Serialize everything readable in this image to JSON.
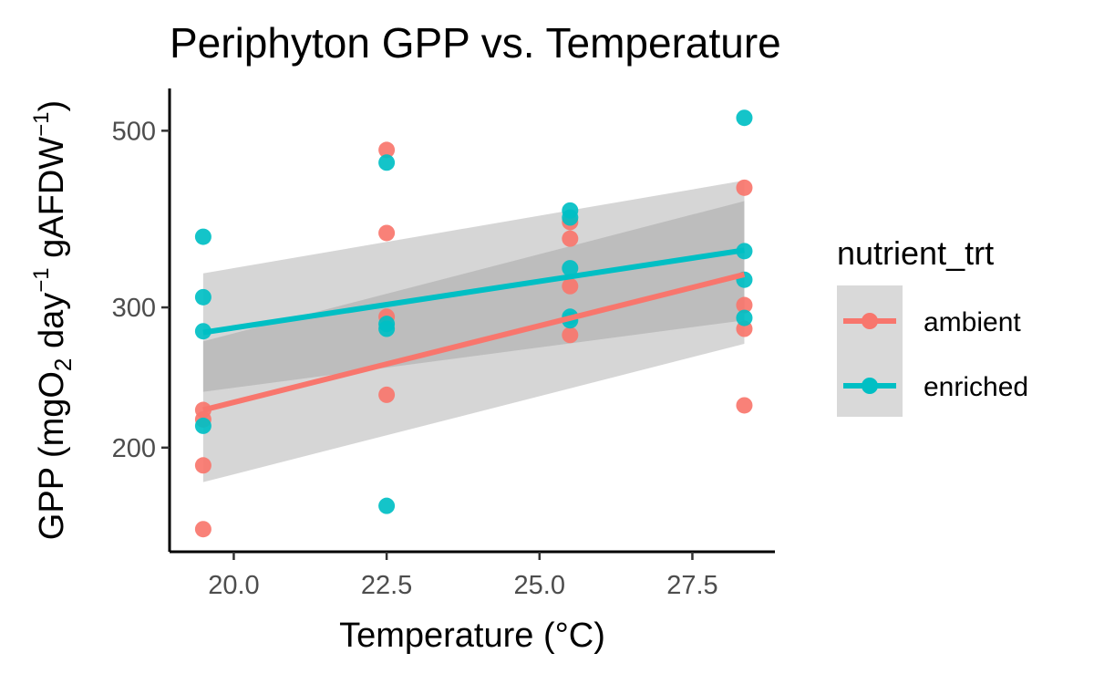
{
  "chart_data": {
    "type": "scatter",
    "title": "Periphyton GPP vs. Temperature",
    "xlabel": "Temperature (°C)",
    "ylabel": {
      "p1": "GPP (mgO",
      "sub": "2",
      "p2": " day",
      "sup1": "−1",
      "p3": " gAFDW",
      "sup2": "−1",
      "p4": ")"
    },
    "y_scale": "log",
    "xlim": [
      18.95,
      28.85
    ],
    "ylim": [
      148,
      565
    ],
    "x_ticks": [
      20.0,
      22.5,
      25.0,
      27.5
    ],
    "x_tick_labels": [
      "20.0",
      "22.5",
      "25.0",
      "27.5"
    ],
    "y_ticks": [
      200,
      300,
      500
    ],
    "y_tick_labels": [
      "200",
      "300",
      "500"
    ],
    "legend": {
      "title": "nutrient_trt",
      "placement": "right"
    },
    "series": [
      {
        "name": "ambient",
        "color": "#F8766D",
        "points": [
          [
            19.5,
            158
          ],
          [
            19.5,
            190
          ],
          [
            19.5,
            217
          ],
          [
            19.5,
            223
          ],
          [
            22.5,
            233
          ],
          [
            22.5,
            292
          ],
          [
            22.5,
            372
          ],
          [
            22.5,
            473
          ],
          [
            25.5,
            277
          ],
          [
            25.5,
            319
          ],
          [
            25.5,
            366
          ],
          [
            25.5,
            384
          ],
          [
            28.35,
            226
          ],
          [
            28.35,
            282
          ],
          [
            28.35,
            302
          ],
          [
            28.35,
            424
          ]
        ],
        "fit": {
          "x": [
            19.5,
            28.35
          ],
          "y": [
            223,
            330
          ]
        },
        "ci": {
          "lower": [
            181,
            270
          ],
          "upper": [
            272,
            408
          ]
        }
      },
      {
        "name": "enriched",
        "color": "#00BFC4",
        "points": [
          [
            19.5,
            213
          ],
          [
            19.5,
            280
          ],
          [
            19.5,
            309
          ],
          [
            19.5,
            368
          ],
          [
            22.5,
            169
          ],
          [
            22.5,
            282
          ],
          [
            22.5,
            286
          ],
          [
            22.5,
            456
          ],
          [
            25.5,
            289
          ],
          [
            25.5,
            292
          ],
          [
            25.5,
            336
          ],
          [
            25.5,
            389
          ],
          [
            25.5,
            397
          ],
          [
            28.35,
            291
          ],
          [
            28.35,
            325
          ],
          [
            28.35,
            353
          ],
          [
            28.35,
            519
          ]
        ],
        "fit": {
          "x": [
            19.5,
            28.35
          ],
          "y": [
            279,
            354
          ]
        },
        "ci": {
          "lower": [
            235,
            289
          ],
          "upper": [
            331,
            433
          ]
        }
      }
    ]
  }
}
